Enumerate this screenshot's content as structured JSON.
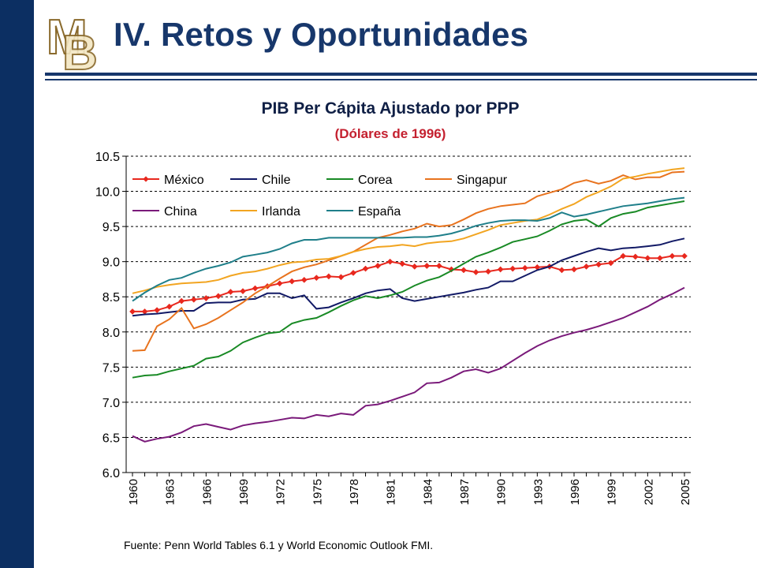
{
  "slide": {
    "title": "IV. Retos y Oportunidades",
    "source": "Fuente: Penn World Tables 6.1 y World Economic Outlook FMI.",
    "colors": {
      "sidebar": "#0c2f62",
      "title": "#17376b",
      "subtitle": "#c4202f"
    },
    "logo_icon": "bm-monogram-logo",
    "logo_text": "BM"
  },
  "chart_data": {
    "type": "line",
    "title": "PIB Per Cápita Ajustado por PPP",
    "subtitle": "(Dólares de 1996)",
    "xlabel": "",
    "ylabel": "",
    "ylim": [
      6.0,
      10.5
    ],
    "yticks": [
      "6.0",
      "6.5",
      "7.0",
      "7.5",
      "8.0",
      "8.5",
      "9.0",
      "9.5",
      "10.0",
      "10.5"
    ],
    "xlim": [
      1960,
      2005
    ],
    "xticks": [
      "1960",
      "1963",
      "1966",
      "1969",
      "1972",
      "1975",
      "1978",
      "1981",
      "1984",
      "1987",
      "1990",
      "1993",
      "1996",
      "1999",
      "2002",
      "2005"
    ],
    "grid": "horizontal dashed",
    "legend_position": "top-left, inside plot",
    "x": [
      1960,
      1961,
      1962,
      1963,
      1964,
      1965,
      1966,
      1967,
      1968,
      1969,
      1970,
      1971,
      1972,
      1973,
      1974,
      1975,
      1976,
      1977,
      1978,
      1979,
      1980,
      1981,
      1982,
      1983,
      1984,
      1985,
      1986,
      1987,
      1988,
      1989,
      1990,
      1991,
      1992,
      1993,
      1994,
      1995,
      1996,
      1997,
      1998,
      1999,
      2000,
      2001,
      2002,
      2003,
      2004,
      2005
    ],
    "series": [
      {
        "name": "México",
        "color": "#e8281e",
        "marker": "diamond",
        "values": [
          8.29,
          8.29,
          8.31,
          8.36,
          8.44,
          8.46,
          8.48,
          8.51,
          8.57,
          8.58,
          8.62,
          8.65,
          8.69,
          8.72,
          8.74,
          8.77,
          8.79,
          8.78,
          8.84,
          8.9,
          8.94,
          9.0,
          8.97,
          8.93,
          8.94,
          8.94,
          8.89,
          8.88,
          8.85,
          8.86,
          8.89,
          8.9,
          8.91,
          8.92,
          8.93,
          8.88,
          8.89,
          8.93,
          8.96,
          8.98,
          9.08,
          9.07,
          9.05,
          9.05,
          9.08,
          9.08
        ]
      },
      {
        "name": "Chile",
        "color": "#121a66",
        "marker": "none",
        "values": [
          8.23,
          8.25,
          8.26,
          8.28,
          8.3,
          8.3,
          8.41,
          8.42,
          8.42,
          8.46,
          8.47,
          8.55,
          8.55,
          8.48,
          8.52,
          8.33,
          8.35,
          8.42,
          8.48,
          8.55,
          8.59,
          8.61,
          8.48,
          8.44,
          8.47,
          8.5,
          8.53,
          8.56,
          8.6,
          8.63,
          8.72,
          8.72,
          8.8,
          8.88,
          8.93,
          9.02,
          9.08,
          9.14,
          9.19,
          9.16,
          9.19,
          9.2,
          9.22,
          9.24,
          9.29,
          9.33
        ]
      },
      {
        "name": "Corea",
        "color": "#198a25",
        "marker": "none",
        "values": [
          7.35,
          7.38,
          7.39,
          7.44,
          7.48,
          7.52,
          7.62,
          7.65,
          7.73,
          7.85,
          7.92,
          7.98,
          8.0,
          8.12,
          8.17,
          8.2,
          8.28,
          8.37,
          8.45,
          8.51,
          8.48,
          8.52,
          8.57,
          8.66,
          8.73,
          8.78,
          8.87,
          8.97,
          9.07,
          9.13,
          9.2,
          9.28,
          9.32,
          9.36,
          9.44,
          9.53,
          9.58,
          9.6,
          9.5,
          9.62,
          9.68,
          9.71,
          9.77,
          9.8,
          9.83,
          9.86
        ]
      },
      {
        "name": "Singapur",
        "color": "#e8731e",
        "marker": "none",
        "values": [
          7.73,
          7.74,
          8.08,
          8.18,
          8.34,
          8.05,
          8.11,
          8.2,
          8.31,
          8.42,
          8.55,
          8.65,
          8.76,
          8.86,
          8.92,
          8.96,
          9.02,
          9.08,
          9.14,
          9.24,
          9.34,
          9.38,
          9.43,
          9.47,
          9.54,
          9.5,
          9.52,
          9.6,
          9.69,
          9.75,
          9.79,
          9.81,
          9.83,
          9.93,
          9.98,
          10.03,
          10.12,
          10.16,
          10.11,
          10.15,
          10.23,
          10.17,
          10.2,
          10.2,
          10.27,
          10.28
        ]
      },
      {
        "name": "China",
        "color": "#7a1a7a",
        "marker": "none",
        "values": [
          6.52,
          6.44,
          6.48,
          6.51,
          6.57,
          6.66,
          6.69,
          6.65,
          6.61,
          6.67,
          6.7,
          6.72,
          6.75,
          6.78,
          6.77,
          6.82,
          6.8,
          6.84,
          6.82,
          6.95,
          6.97,
          7.02,
          7.08,
          7.14,
          7.27,
          7.28,
          7.35,
          7.44,
          7.47,
          7.42,
          7.48,
          7.59,
          7.7,
          7.8,
          7.88,
          7.94,
          7.99,
          8.03,
          8.08,
          8.14,
          8.2,
          8.28,
          8.36,
          8.46,
          8.54,
          8.63
        ]
      },
      {
        "name": "Irlanda",
        "color": "#f2a521",
        "marker": "none",
        "values": [
          8.55,
          8.59,
          8.64,
          8.67,
          8.69,
          8.7,
          8.71,
          8.74,
          8.8,
          8.84,
          8.86,
          8.9,
          8.95,
          8.99,
          9.0,
          9.03,
          9.04,
          9.08,
          9.14,
          9.18,
          9.21,
          9.22,
          9.24,
          9.22,
          9.26,
          9.28,
          9.29,
          9.33,
          9.39,
          9.45,
          9.52,
          9.55,
          9.58,
          9.6,
          9.67,
          9.75,
          9.82,
          9.92,
          9.99,
          10.07,
          10.18,
          10.21,
          10.25,
          10.28,
          10.31,
          10.33
        ]
      },
      {
        "name": "España",
        "color": "#1f7f8a",
        "marker": "none",
        "values": [
          8.44,
          8.56,
          8.66,
          8.74,
          8.77,
          8.84,
          8.9,
          8.94,
          8.99,
          9.07,
          9.1,
          9.13,
          9.18,
          9.26,
          9.31,
          9.31,
          9.34,
          9.34,
          9.34,
          9.34,
          9.34,
          9.34,
          9.34,
          9.35,
          9.35,
          9.37,
          9.4,
          9.45,
          9.51,
          9.55,
          9.58,
          9.59,
          9.59,
          9.58,
          9.62,
          9.7,
          9.64,
          9.67,
          9.71,
          9.75,
          9.79,
          9.81,
          9.83,
          9.86,
          9.89,
          9.91
        ]
      }
    ]
  }
}
